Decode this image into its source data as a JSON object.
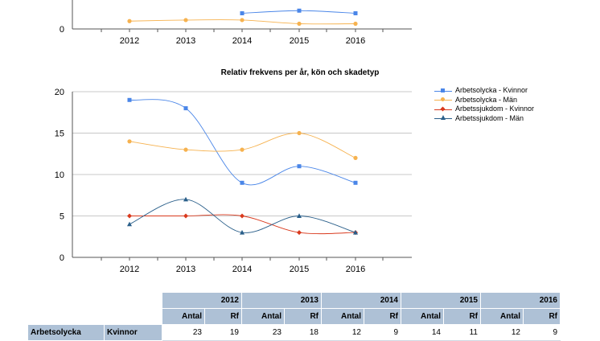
{
  "top_chart": {
    "type": "line",
    "x": [
      "2012",
      "2013",
      "2014",
      "2015",
      "2016"
    ],
    "ytick_labels": [
      "0"
    ],
    "series": [
      {
        "name": "",
        "color": "#4a86e8",
        "marker": "square",
        "values": [
          null,
          null,
          3.0,
          3.5,
          3.0
        ]
      },
      {
        "name": "",
        "color": "#f6b24f",
        "marker": "circle",
        "values": [
          1.5,
          1.7,
          1.7,
          1.0,
          1.0
        ]
      }
    ]
  },
  "chart_data": {
    "type": "line",
    "title": "Relativ frekvens per år, kön och skadetyp",
    "x": [
      "2012",
      "2013",
      "2014",
      "2015",
      "2016"
    ],
    "ylim": [
      0,
      20
    ],
    "yticks": [
      0,
      5,
      10,
      15,
      20
    ],
    "ytick_labels": [
      "0",
      "5",
      "10",
      "15",
      "20"
    ],
    "grid": true,
    "legend": "right",
    "series": [
      {
        "name": "Arbetsolycka - Kvinnor",
        "color": "#4a86e8",
        "marker": "square",
        "values": [
          19,
          18,
          9,
          11,
          9
        ]
      },
      {
        "name": "Arbetsolycka - Män",
        "color": "#f6b24f",
        "marker": "circle",
        "values": [
          14,
          13,
          13,
          15,
          12
        ]
      },
      {
        "name": "Arbetssjukdom - Kvinnor",
        "color": "#d9391d",
        "marker": "diamond",
        "values": [
          5,
          5,
          5,
          3,
          3
        ]
      },
      {
        "name": "Arbetssjukdom - Män",
        "color": "#2a5f8a",
        "marker": "triangle",
        "values": [
          4,
          7,
          3,
          5,
          3
        ]
      }
    ]
  },
  "table": {
    "years": [
      "2012",
      "2013",
      "2014",
      "2015",
      "2016"
    ],
    "subheaders": [
      "Antal",
      "Rf"
    ],
    "rows": [
      {
        "group": "Arbetsolycka",
        "sex": "Kvinnor",
        "values": [
          "23",
          "19",
          "23",
          "18",
          "12",
          "9",
          "14",
          "11",
          "12",
          "9"
        ]
      }
    ]
  }
}
